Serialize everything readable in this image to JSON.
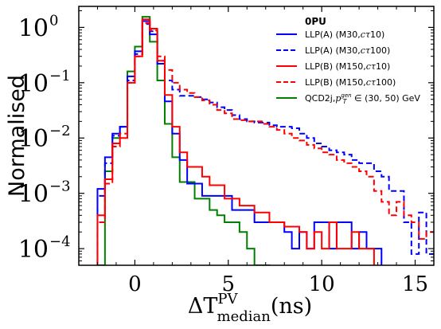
{
  "chart_data": {
    "type": "line",
    "title": "",
    "xlabel": "ΔT",
    "xlabel_sup": "PV",
    "xlabel_sub": "median",
    "xlabel_unit": "(ns)",
    "ylabel": "Normalised",
    "xlim": [
      -3,
      16
    ],
    "ylim": [
      5e-05,
      2.4
    ],
    "yscale": "log",
    "xticks": [
      0,
      5,
      10,
      15
    ],
    "xtick_labels": [
      "0",
      "5",
      "10",
      "15"
    ],
    "yticks": [
      0.0001,
      0.001,
      0.01,
      0.1,
      1
    ],
    "ytick_labels": [
      "10",
      "10",
      "10",
      "10",
      "10"
    ],
    "ytick_exponents": [
      "−4",
      "−3",
      "−2",
      "−1",
      "0"
    ],
    "grid": false,
    "legend_position": "top-right",
    "legend_title": "0PU",
    "bin_edges_start": -2,
    "bin_width": 0.4,
    "series": [
      {
        "name": "LLP(A) (M30,",
        "name_math": "cτ",
        "name_end": "10)",
        "color": "#0000ff",
        "style": "solid",
        "values": [
          0.0012,
          0.0045,
          0.012,
          0.016,
          0.13,
          0.37,
          1.3,
          0.75,
          0.22,
          0.046,
          0.012,
          0.004,
          0.0015,
          0.0015,
          0.0009,
          0.0009,
          0.0009,
          0.0009,
          0.0005,
          0.0005,
          0.0005,
          0.0003,
          0.0003,
          0.0003,
          0.0003,
          0.0002,
          0.0001,
          0.0002,
          0.0001,
          0.0003,
          0.0003,
          0.0001,
          0.0003,
          0.0003,
          0.0001,
          0.0002,
          0.0001,
          0.0001,
          0,
          0,
          0,
          0,
          0,
          0,
          0
        ]
      },
      {
        "name": "LLP(A) (M30,",
        "name_math": "cτ",
        "name_end": "100)",
        "color": "#0000ff",
        "style": "dashed",
        "values": [
          0.0009,
          0.0035,
          0.011,
          0.016,
          0.11,
          0.33,
          1.15,
          0.85,
          0.25,
          0.11,
          0.075,
          0.058,
          0.058,
          0.055,
          0.05,
          0.044,
          0.036,
          0.032,
          0.026,
          0.022,
          0.02,
          0.019,
          0.019,
          0.017,
          0.016,
          0.016,
          0.015,
          0.012,
          0.01,
          0.008,
          0.007,
          0.006,
          0.0055,
          0.005,
          0.004,
          0.0035,
          0.0035,
          0.0025,
          0.002,
          0.0011,
          0.0011,
          0.0003,
          8e-05,
          0.00045,
          8e-05
        ]
      },
      {
        "name": "LLP(B) (M150,",
        "name_math": "cτ",
        "name_end": "10)",
        "color": "#ff0000",
        "style": "solid",
        "values": [
          0.0004,
          0.0018,
          0.008,
          0.01,
          0.1,
          0.3,
          1.4,
          0.95,
          0.25,
          0.06,
          0.016,
          0.0055,
          0.003,
          0.003,
          0.002,
          0.0014,
          0.0014,
          0.0008,
          0.0008,
          0.0006,
          0.0006,
          0.00045,
          0.00045,
          0.0003,
          0.0003,
          0.00025,
          0.00025,
          0.0002,
          0.0001,
          0.0002,
          0.0001,
          0.0003,
          0.0001,
          0.0001,
          0.0002,
          0.0001,
          0.0001,
          0,
          0,
          0,
          0,
          0,
          0,
          0,
          0
        ]
      },
      {
        "name": "LLP(B) (M150,",
        "name_math": "cτ",
        "name_end": "100)",
        "color": "#ff0000",
        "style": "dashed",
        "values": [
          0.0003,
          0.0015,
          0.007,
          0.012,
          0.1,
          0.3,
          1.2,
          0.88,
          0.3,
          0.17,
          0.1,
          0.075,
          0.065,
          0.055,
          0.048,
          0.04,
          0.032,
          0.028,
          0.022,
          0.021,
          0.02,
          0.02,
          0.018,
          0.016,
          0.014,
          0.012,
          0.01,
          0.009,
          0.0075,
          0.0065,
          0.0055,
          0.005,
          0.004,
          0.0035,
          0.003,
          0.0025,
          0.002,
          0.0011,
          0.0007,
          0.0004,
          0.0007,
          0.0004,
          0.0003,
          0.00015,
          0.0002
        ]
      },
      {
        "name": "QCD2j,",
        "name_math": "p",
        "name_sub": "T",
        "name_sup": "gen",
        "name_end": "∈ (30, 50) GeV",
        "color": "#008000",
        "style": "solid",
        "values": [
          5e-05,
          0.0025,
          0.01,
          0.016,
          0.16,
          0.45,
          1.55,
          0.55,
          0.11,
          0.018,
          0.0045,
          0.0016,
          0.0016,
          0.0008,
          0.0008,
          0.0005,
          0.0004,
          0.0003,
          0.0003,
          0.0002,
          0.0001,
          5e-05,
          5e-05,
          0,
          0,
          0,
          0,
          0,
          0,
          0,
          0,
          0,
          0,
          0,
          0,
          0,
          0,
          0,
          0,
          0,
          0,
          0,
          0,
          0,
          0
        ]
      }
    ]
  }
}
